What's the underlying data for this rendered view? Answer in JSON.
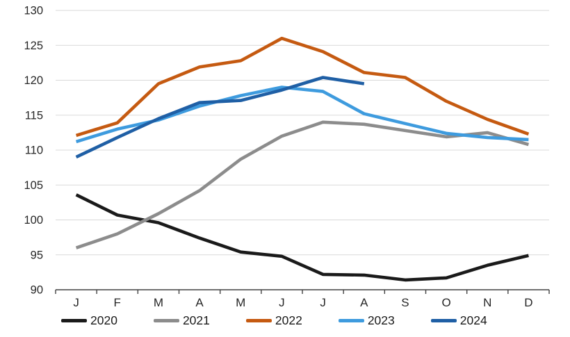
{
  "chart_data": {
    "type": "line",
    "title": "",
    "xlabel": "",
    "ylabel": "",
    "categories": [
      "J",
      "F",
      "M",
      "A",
      "M",
      "J",
      "J",
      "A",
      "S",
      "O",
      "N",
      "D"
    ],
    "yticks": [
      90,
      95,
      100,
      105,
      110,
      115,
      120,
      125,
      130
    ],
    "ylim": [
      90,
      130
    ],
    "grid": "horizontal",
    "legend_position": "bottom",
    "series": [
      {
        "name": "2020",
        "color": "#1a1a1a",
        "values": [
          103.6,
          100.7,
          99.6,
          97.4,
          95.4,
          94.8,
          92.2,
          92.1,
          91.4,
          91.7,
          93.5,
          94.9
        ]
      },
      {
        "name": "2021",
        "color": "#8c8c8c",
        "values": [
          96.0,
          98.0,
          100.9,
          104.2,
          108.7,
          112.0,
          114.0,
          113.7,
          112.8,
          111.9,
          112.5,
          110.8
        ]
      },
      {
        "name": "2022",
        "color": "#c55a11",
        "values": [
          112.1,
          113.9,
          119.5,
          121.9,
          122.8,
          126.0,
          124.1,
          121.1,
          120.4,
          117.0,
          114.4,
          112.3
        ]
      },
      {
        "name": "2023",
        "color": "#3e9bde",
        "values": [
          111.2,
          113.0,
          114.3,
          116.3,
          117.8,
          119.0,
          118.4,
          115.2,
          113.8,
          112.4,
          111.8,
          111.5
        ]
      },
      {
        "name": "2024",
        "color": "#1f5fa5",
        "values": [
          109.0,
          111.8,
          114.5,
          116.8,
          117.1,
          118.6,
          120.4,
          119.5
        ]
      }
    ],
    "colors": {
      "gridline": "#d9d9d9",
      "axis_line": "#404040",
      "tick_label": "#262626"
    }
  }
}
